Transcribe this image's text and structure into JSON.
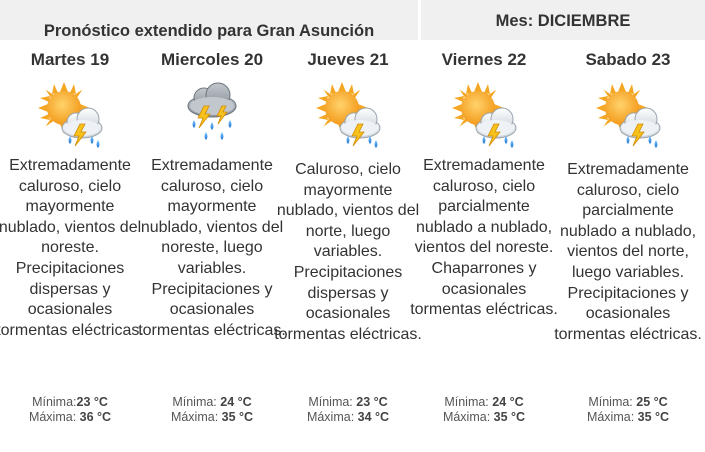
{
  "header": {
    "title": "Pronóstico extendido para Gran Asunción",
    "month": "Mes: DICIEMBRE"
  },
  "days": [
    {
      "day": "Martes 19",
      "icon": "sun-cloud-rain-icon",
      "description": "Extremadamente caluroso, cielo mayormente nublado, vientos del noreste. Precipitaciones dispersas y ocasionales tormentas eléctricas.",
      "min_label": "Mínima:",
      "min": "23 °C",
      "max_label": "Máxima:",
      "max": "36 °C"
    },
    {
      "day": "Miercoles 20",
      "icon": "cloud-storm-rain-icon",
      "description": "Extremadamente caluroso, cielo mayormente nublado, vientos del noreste, luego variables. Precipitaciones y ocasionales tormentas eléctricas.",
      "min_label": "Mínima:",
      "min": "24 °C",
      "max_label": "Máxima:",
      "max": "35 °C"
    },
    {
      "day": "Jueves 21",
      "icon": "sun-cloud-rain-icon",
      "description": "Caluroso, cielo mayormente nublado, vientos del norte, luego variables. Precipitaciones dispersas y ocasionales tormentas eléctricas.",
      "min_label": "Mínima:",
      "min": "23 °C",
      "max_label": "Máxima:",
      "max": "34 °C"
    },
    {
      "day": "Viernes 22",
      "icon": "sun-cloud-rain-icon",
      "description": "Extremadamente caluroso, cielo parcialmente nublado a nublado, vientos del noreste. Chaparrones y ocasionales tormentas eléctricas.",
      "min_label": "Mínima:",
      "min": "24 °C",
      "max_label": "Máxima:",
      "max": "35 °C"
    },
    {
      "day": "Sabado 23",
      "icon": "sun-cloud-rain-icon",
      "description": "Extremadamente caluroso, cielo parcialmente nublado a nublado, vientos del norte, luego variables. Precipitaciones y ocasionales tormentas eléctricas.",
      "min_label": "Mínima:",
      "min": "25 °C",
      "max_label": "Máxima:",
      "max": "35 °C"
    }
  ]
}
